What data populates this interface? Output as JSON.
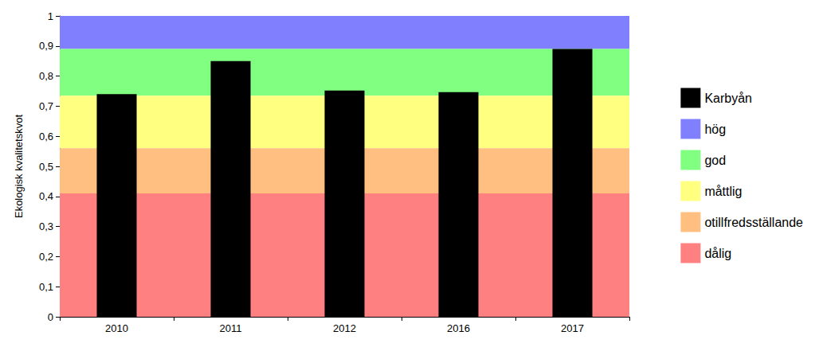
{
  "chart_data": {
    "type": "bar",
    "y_label": "Ekologisk kvalitetskvot",
    "categories": [
      "2010",
      "2011",
      "2012",
      "2016",
      "2017"
    ],
    "series": [
      {
        "name": "Karbyån",
        "color": "#000000",
        "values": [
          0.74,
          0.85,
          0.752,
          0.747,
          0.89
        ]
      }
    ],
    "bands": [
      {
        "name": "hög",
        "color": "#8080ff",
        "from": 0.89,
        "to": 1
      },
      {
        "name": "god",
        "color": "#80ff80",
        "from": 0.735,
        "to": 0.89
      },
      {
        "name": "måttlig",
        "color": "#ffff80",
        "from": 0.56,
        "to": 0.735
      },
      {
        "name": "otillfredsställande",
        "color": "#ffbf80",
        "from": 0.41,
        "to": 0.56
      },
      {
        "name": "dålig",
        "color": "#ff8080",
        "from": 0,
        "to": 0.41
      }
    ],
    "ylim": [
      0,
      1
    ],
    "yticks": [
      0,
      {
        "value": 0.1,
        "label": "0,1"
      },
      {
        "value": 0.2,
        "label": "0,2"
      },
      {
        "value": 0.3,
        "label": "0,3"
      },
      {
        "value": 0.4,
        "label": "0,4"
      },
      {
        "value": 0.5,
        "label": "0,5"
      },
      {
        "value": 0.6,
        "label": "0,6"
      },
      {
        "value": 0.7,
        "label": "0,7"
      },
      {
        "value": 0.8,
        "label": "0,8"
      },
      {
        "value": 0.9,
        "label": "0,9"
      },
      1
    ],
    "grid": false,
    "legend": "right"
  }
}
